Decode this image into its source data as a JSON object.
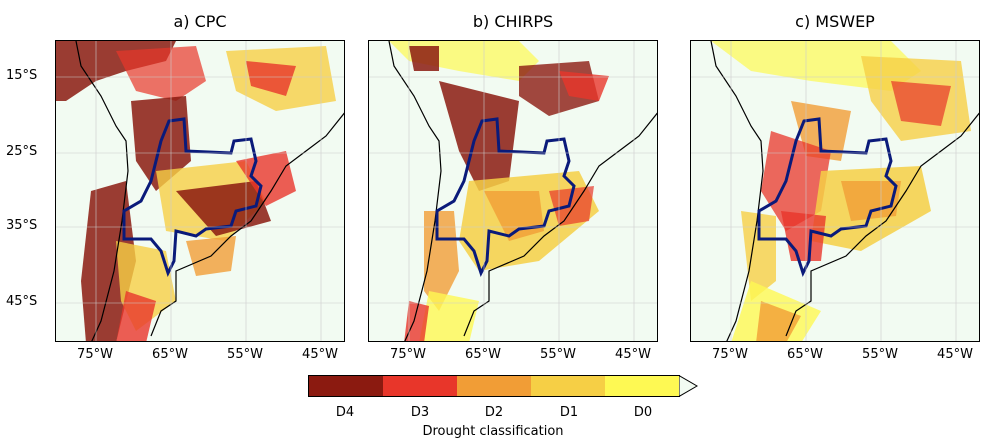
{
  "panels": [
    {
      "title": "a) CPC"
    },
    {
      "title": "b) CHIRPS"
    },
    {
      "title": "c) MSWEP"
    }
  ],
  "y_ticks": [
    "15°S",
    "25°S",
    "35°S",
    "45°S"
  ],
  "x_ticks": [
    "75°W",
    "65°W",
    "55°W",
    "45°W"
  ],
  "colorbar": {
    "title": "Drought classification",
    "classes": [
      {
        "label": "D4",
        "color": "#8b1a10"
      },
      {
        "label": "D3",
        "color": "#e8362a"
      },
      {
        "label": "D2",
        "color": "#f19d36"
      },
      {
        "label": "D1",
        "color": "#f6cf45"
      },
      {
        "label": "D0",
        "color": "#fef953"
      }
    ],
    "no_drought_color": "#f2fbf2"
  },
  "colors": {
    "region_outline": "#0a1a7a",
    "coastline": "#000000",
    "borders": "#555555"
  }
}
